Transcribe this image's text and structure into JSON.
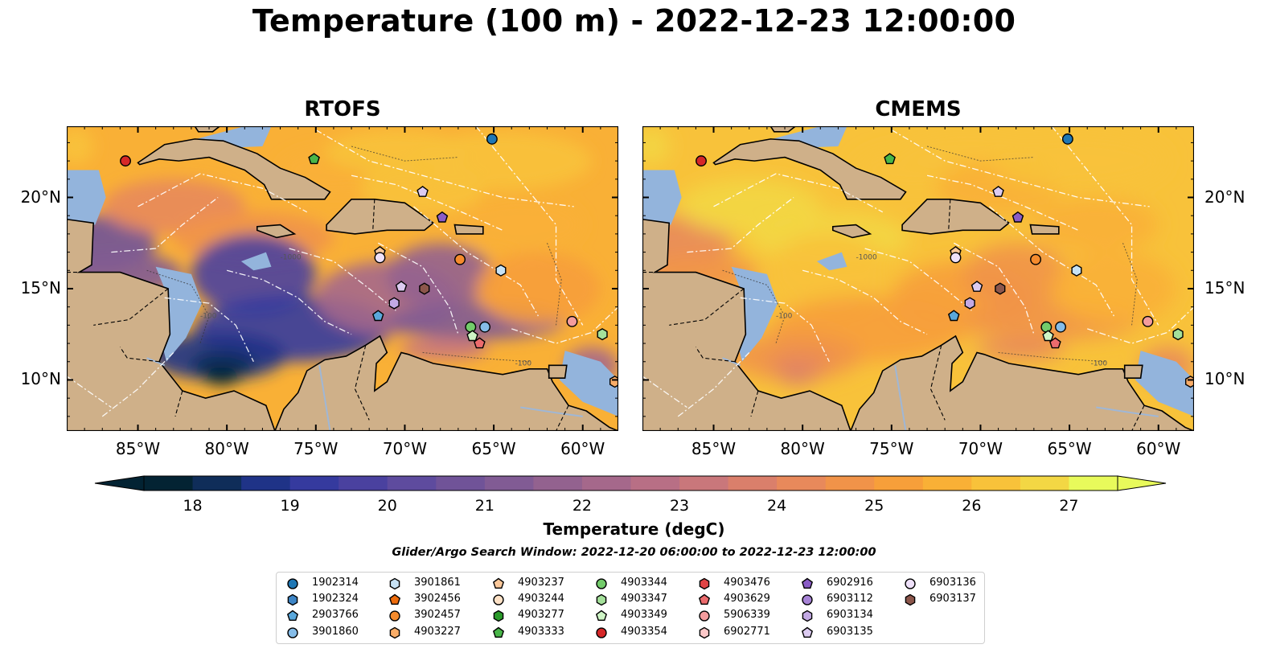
{
  "title": "Temperature (100 m) - 2022-12-23 12:00:00",
  "panels": [
    {
      "key": "rtofs",
      "title": "RTOFS"
    },
    {
      "key": "cmems",
      "title": "CMEMS"
    }
  ],
  "map": {
    "lon_range": [
      -89,
      -58
    ],
    "lat_range": [
      7.2,
      23.9
    ],
    "lon_ticks": [
      {
        "value": -85,
        "label": "85°W"
      },
      {
        "value": -80,
        "label": "80°W"
      },
      {
        "value": -75,
        "label": "75°W"
      },
      {
        "value": -70,
        "label": "70°W"
      },
      {
        "value": -65,
        "label": "65°W"
      },
      {
        "value": -60,
        "label": "60°W"
      }
    ],
    "lat_ticks": [
      {
        "value": 10,
        "label": "10°N"
      },
      {
        "value": 15,
        "label": "15°N"
      },
      {
        "value": 20,
        "label": "20°N"
      }
    ],
    "colors": {
      "land": "#cfb089",
      "ocean_shelf": "#93b4dc",
      "coast": "#000000",
      "eez_lines": "#ffffff",
      "rivers": "#9fb7d6",
      "outside": "#0b2233"
    },
    "contour_labels": [
      "-100",
      "-1000"
    ]
  },
  "colorbar": {
    "label": "Temperature (degC)",
    "ticks": [
      "18",
      "19",
      "20",
      "21",
      "22",
      "23",
      "24",
      "25",
      "26",
      "27"
    ],
    "min": 17.5,
    "max": 27.5,
    "extend": "both",
    "colormap": "thermal",
    "colors": [
      "#032333",
      "#0f2d59",
      "#1f3387",
      "#353a9e",
      "#4a419f",
      "#5e4b9e",
      "#705398",
      "#815b94",
      "#93628f",
      "#a5688b",
      "#b86f85",
      "#c9777b",
      "#da7f6b",
      "#e8895b",
      "#f19349",
      "#f79f3a",
      "#f9b036",
      "#f8c23a",
      "#f3d744",
      "#e8fa5b"
    ]
  },
  "search_window": "Glider/Argo Search Window: 2022-12-20 06:00:00 to 2022-12-23 12:00:00",
  "legend": [
    {
      "id": "1902314",
      "marker": "circle",
      "color": "#1f77b4"
    },
    {
      "id": "1902324",
      "marker": "hexagon",
      "color": "#3d85c6"
    },
    {
      "id": "2903766",
      "marker": "pentagon",
      "color": "#5aa8dc"
    },
    {
      "id": "3901860",
      "marker": "circle",
      "color": "#85bce8"
    },
    {
      "id": "3901861",
      "marker": "hexagon",
      "color": "#c7e2f5"
    },
    {
      "id": "3902456",
      "marker": "pentagon",
      "color": "#ee6c0c"
    },
    {
      "id": "3902457",
      "marker": "circle",
      "color": "#f58b2d"
    },
    {
      "id": "4903227",
      "marker": "hexagon",
      "color": "#f9ad68"
    },
    {
      "id": "4903237",
      "marker": "pentagon",
      "color": "#fbc89a"
    },
    {
      "id": "4903244",
      "marker": "circle",
      "color": "#fde1c6"
    },
    {
      "id": "4903277",
      "marker": "hexagon",
      "color": "#2a9a2a"
    },
    {
      "id": "4903333",
      "marker": "pentagon",
      "color": "#49b649"
    },
    {
      "id": "4903344",
      "marker": "circle",
      "color": "#73cc6b"
    },
    {
      "id": "4903347",
      "marker": "hexagon",
      "color": "#a4e09a"
    },
    {
      "id": "4903349",
      "marker": "pentagon",
      "color": "#cff5c6"
    },
    {
      "id": "4903354",
      "marker": "circle",
      "color": "#d62728"
    },
    {
      "id": "4903476",
      "marker": "hexagon",
      "color": "#e04445"
    },
    {
      "id": "4903629",
      "marker": "pentagon",
      "color": "#ec6b6d"
    },
    {
      "id": "5906339",
      "marker": "circle",
      "color": "#f49c9d"
    },
    {
      "id": "6902771",
      "marker": "hexagon",
      "color": "#fcc8c8"
    },
    {
      "id": "6902916",
      "marker": "pentagon",
      "color": "#8a5cc7"
    },
    {
      "id": "6903112",
      "marker": "circle",
      "color": "#a783d6"
    },
    {
      "id": "6903134",
      "marker": "hexagon",
      "color": "#c3a9e4"
    },
    {
      "id": "6903135",
      "marker": "pentagon",
      "color": "#dccbf1"
    },
    {
      "id": "6903136",
      "marker": "circle",
      "color": "#efe1fa"
    },
    {
      "id": "6903137",
      "marker": "hexagon",
      "color": "#8c564b"
    }
  ],
  "observations": [
    {
      "id": "1902314",
      "lon": -65.1,
      "lat": 23.2
    },
    {
      "id": "4903354",
      "lon": -85.7,
      "lat": 22.0
    },
    {
      "id": "4903333",
      "lon": -75.1,
      "lat": 22.1
    },
    {
      "id": "6903135",
      "lon": -69.0,
      "lat": 20.3
    },
    {
      "id": "6902916",
      "lon": -67.9,
      "lat": 18.9
    },
    {
      "id": "4903237",
      "lon": -71.4,
      "lat": 17.0
    },
    {
      "id": "6903136",
      "lon": -71.4,
      "lat": 16.7
    },
    {
      "id": "3902457",
      "lon": -66.9,
      "lat": 16.6
    },
    {
      "id": "3901861",
      "lon": -64.6,
      "lat": 16.0
    },
    {
      "id": "6903135",
      "lon": -70.2,
      "lat": 15.1
    },
    {
      "id": "6903137",
      "lon": -68.9,
      "lat": 15.0
    },
    {
      "id": "6903134",
      "lon": -70.6,
      "lat": 14.2
    },
    {
      "id": "2903766",
      "lon": -71.5,
      "lat": 13.5
    },
    {
      "id": "4903344",
      "lon": -66.3,
      "lat": 12.9
    },
    {
      "id": "3901860",
      "lon": -65.5,
      "lat": 12.9
    },
    {
      "id": "4903349",
      "lon": -66.2,
      "lat": 12.4
    },
    {
      "id": "4903629",
      "lon": -65.8,
      "lat": 12.0
    },
    {
      "id": "5906339",
      "lon": -60.6,
      "lat": 13.2
    },
    {
      "id": "4903347",
      "lon": -58.9,
      "lat": 12.5
    },
    {
      "id": "4903227",
      "lon": -58.2,
      "lat": 9.9
    }
  ]
}
